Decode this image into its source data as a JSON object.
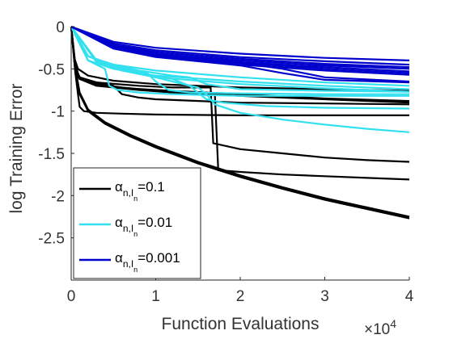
{
  "chart_data": {
    "type": "line",
    "xlabel": "Function Evaluations",
    "ylabel": "log Training Error",
    "x_exponent_label": "×10",
    "x_exponent_power": "4",
    "xlim": [
      0,
      4
    ],
    "ylim": [
      -3.0,
      0
    ],
    "xticks": [
      0,
      1,
      2,
      3,
      4
    ],
    "xtick_labels": [
      "0",
      "1",
      "2",
      "3",
      "4"
    ],
    "yticks": [
      0,
      -0.5,
      -1,
      -1.5,
      -2,
      -2.5
    ],
    "ytick_labels": [
      "0",
      "-0.5",
      "-1",
      "-1.5",
      "-2",
      "-2.5"
    ],
    "grid": false,
    "legend_position": "bottom-left",
    "legend": [
      {
        "prefix": "α",
        "sub": "n,I",
        "subsub": "n",
        "value": "=0.1",
        "color": "#000000"
      },
      {
        "prefix": "α",
        "sub": "n,I",
        "subsub": "n",
        "value": "=0.01",
        "color": "#33e0f0"
      },
      {
        "prefix": "α",
        "sub": "n,I",
        "subsub": "n",
        "value": "=0.001",
        "color": "#0000cc"
      }
    ],
    "series": [
      {
        "group": "0.1",
        "color": "#000000",
        "x": [
          0,
          0.05,
          0.08,
          0.1,
          0.2,
          0.5,
          1,
          2,
          3,
          4
        ],
        "y": [
          0,
          -0.45,
          -0.55,
          -0.6,
          -0.65,
          -0.72,
          -0.75,
          -0.8,
          -0.85,
          -0.88
        ]
      },
      {
        "group": "0.1",
        "color": "#000000",
        "x": [
          0,
          0.05,
          0.1,
          0.3,
          0.6,
          1,
          2,
          3,
          4
        ],
        "y": [
          0,
          -0.5,
          -0.62,
          -0.68,
          -0.72,
          -0.76,
          -0.82,
          -0.86,
          -0.9
        ]
      },
      {
        "group": "0.1",
        "color": "#000000",
        "x": [
          0,
          0.04,
          0.08,
          0.2,
          0.5,
          1,
          2,
          3,
          4
        ],
        "y": [
          0,
          -0.38,
          -0.5,
          -0.58,
          -0.64,
          -0.68,
          -0.72,
          -0.74,
          -0.76
        ]
      },
      {
        "group": "0.1",
        "color": "#000000",
        "x": [
          0,
          0.05,
          0.1,
          0.3,
          0.5,
          0.6,
          0.8,
          1,
          2,
          3,
          4
        ],
        "y": [
          0,
          -0.55,
          -0.62,
          -0.66,
          -0.7,
          -0.8,
          -0.84,
          -0.86,
          -0.9,
          -0.91,
          -0.92
        ]
      },
      {
        "group": "0.1",
        "color": "#000000",
        "x": [
          0,
          0.05,
          0.08,
          0.1,
          0.15,
          0.3,
          0.6,
          1,
          2,
          3,
          4
        ],
        "y": [
          0,
          -0.55,
          -0.8,
          -0.95,
          -1.0,
          -1.02,
          -1.03,
          -1.04,
          -1.05,
          -1.05,
          -1.05
        ]
      },
      {
        "group": "0.1",
        "color": "#000000",
        "x": [
          0,
          0.05,
          0.1,
          0.3,
          0.8,
          1.2,
          1.65,
          1.68,
          2,
          2.5,
          3,
          3.5,
          4
        ],
        "y": [
          0,
          -0.5,
          -0.6,
          -0.66,
          -0.7,
          -0.72,
          -0.72,
          -1.38,
          -1.45,
          -1.5,
          -1.55,
          -1.58,
          -1.6
        ]
      },
      {
        "group": "0.1",
        "color": "#000000",
        "x": [
          0,
          0.05,
          0.1,
          0.3,
          0.8,
          1.2,
          1.7,
          1.74,
          2,
          2.5,
          3,
          3.5,
          4
        ],
        "y": [
          0,
          -0.5,
          -0.62,
          -0.7,
          -0.75,
          -0.78,
          -0.8,
          -1.7,
          -1.72,
          -1.75,
          -1.77,
          -1.79,
          -1.81
        ]
      },
      {
        "group": "0.1",
        "color": "#000000",
        "x": [
          0,
          0.05,
          0.1,
          0.2,
          0.4,
          0.7,
          1,
          1.5,
          2,
          2.5,
          3,
          3.5,
          4
        ],
        "y": [
          0,
          -0.5,
          -0.8,
          -1.0,
          -1.15,
          -1.3,
          -1.43,
          -1.62,
          -1.78,
          -1.92,
          -2.05,
          -2.16,
          -2.27
        ]
      },
      {
        "group": "0.1",
        "color": "#000000",
        "x": [
          0,
          0.05,
          0.1,
          0.2,
          0.4,
          0.7,
          1,
          1.5,
          2,
          2.5,
          3,
          3.5,
          4
        ],
        "y": [
          0,
          -0.5,
          -0.78,
          -0.98,
          -1.13,
          -1.28,
          -1.41,
          -1.6,
          -1.76,
          -1.9,
          -2.03,
          -2.14,
          -2.25
        ]
      },
      {
        "group": "0.01",
        "color": "#33e0f0",
        "x": [
          0,
          0.2,
          0.5,
          1,
          2,
          3,
          4
        ],
        "y": [
          0,
          -0.35,
          -0.45,
          -0.52,
          -0.6,
          -0.66,
          -0.7
        ]
      },
      {
        "group": "0.01",
        "color": "#33e0f0",
        "x": [
          0,
          0.2,
          0.5,
          1,
          2,
          3,
          4
        ],
        "y": [
          0,
          -0.4,
          -0.5,
          -0.58,
          -0.65,
          -0.7,
          -0.74
        ]
      },
      {
        "group": "0.01",
        "color": "#33e0f0",
        "x": [
          0,
          0.3,
          0.6,
          1,
          2,
          3,
          4
        ],
        "y": [
          0,
          -0.42,
          -0.52,
          -0.6,
          -0.68,
          -0.73,
          -0.77
        ]
      },
      {
        "group": "0.01",
        "color": "#33e0f0",
        "x": [
          0,
          0.2,
          0.4,
          0.45,
          0.55,
          0.8,
          1.2,
          2,
          3,
          4
        ],
        "y": [
          0,
          -0.4,
          -0.5,
          -0.7,
          -0.75,
          -0.78,
          -0.8,
          -0.82,
          -0.82,
          -0.82
        ]
      },
      {
        "group": "0.01",
        "color": "#33e0f0",
        "x": [
          0,
          0.2,
          0.5,
          0.9,
          1.0,
          1.15,
          1.4,
          2,
          3,
          4
        ],
        "y": [
          0,
          -0.35,
          -0.48,
          -0.55,
          -0.65,
          -0.75,
          -0.78,
          -0.79,
          -0.8,
          -0.8
        ]
      },
      {
        "group": "0.01",
        "color": "#33e0f0",
        "x": [
          0,
          0.3,
          0.8,
          1.2,
          1.4,
          1.6,
          2,
          3,
          4
        ],
        "y": [
          0,
          -0.4,
          -0.52,
          -0.58,
          -0.6,
          -0.68,
          -0.74,
          -0.76,
          -0.77
        ]
      },
      {
        "group": "0.01",
        "color": "#33e0f0",
        "x": [
          0,
          0.3,
          0.8,
          1.2,
          1.4,
          1.6,
          1.8,
          2.3,
          3,
          4
        ],
        "y": [
          0,
          -0.4,
          -0.55,
          -0.62,
          -0.7,
          -0.86,
          -0.9,
          -0.94,
          -0.96,
          -0.97
        ]
      },
      {
        "group": "0.01",
        "color": "#33e0f0",
        "x": [
          0,
          0.3,
          0.8,
          1.2,
          1.5,
          1.6,
          1.7,
          2.0,
          2.5,
          3,
          3.5,
          4
        ],
        "y": [
          0,
          -0.4,
          -0.55,
          -0.65,
          -0.72,
          -0.8,
          -0.92,
          -1.02,
          -1.1,
          -1.16,
          -1.21,
          -1.25
        ]
      },
      {
        "group": "0.001",
        "color": "#0000cc",
        "x": [
          0,
          0.5,
          1,
          2,
          3,
          4
        ],
        "y": [
          0,
          -0.18,
          -0.25,
          -0.32,
          -0.37,
          -0.4
        ]
      },
      {
        "group": "0.001",
        "color": "#0000cc",
        "x": [
          0,
          0.5,
          1,
          2,
          3,
          4
        ],
        "y": [
          0,
          -0.2,
          -0.28,
          -0.36,
          -0.41,
          -0.45
        ]
      },
      {
        "group": "0.001",
        "color": "#0000cc",
        "x": [
          0,
          0.5,
          1,
          2,
          3,
          4
        ],
        "y": [
          0,
          -0.22,
          -0.3,
          -0.38,
          -0.44,
          -0.48
        ]
      },
      {
        "group": "0.001",
        "color": "#0000cc",
        "x": [
          0,
          0.5,
          1,
          2,
          3,
          4
        ],
        "y": [
          0,
          -0.23,
          -0.32,
          -0.4,
          -0.46,
          -0.5
        ]
      },
      {
        "group": "0.001",
        "color": "#0000cc",
        "x": [
          0,
          0.5,
          1,
          2,
          3,
          4
        ],
        "y": [
          0,
          -0.24,
          -0.33,
          -0.42,
          -0.48,
          -0.53
        ]
      },
      {
        "group": "0.001",
        "color": "#0000cc",
        "x": [
          0,
          0.5,
          1,
          2,
          3,
          4
        ],
        "y": [
          0,
          -0.25,
          -0.34,
          -0.43,
          -0.5,
          -0.55
        ]
      },
      {
        "group": "0.001",
        "color": "#0000cc",
        "x": [
          0,
          0.5,
          1,
          2,
          3,
          4
        ],
        "y": [
          0,
          -0.26,
          -0.35,
          -0.45,
          -0.52,
          -0.57
        ]
      },
      {
        "group": "0.001",
        "color": "#0000cc",
        "x": [
          0,
          0.5,
          1,
          2,
          2.5,
          3,
          4
        ],
        "y": [
          0,
          -0.24,
          -0.33,
          -0.43,
          -0.5,
          -0.6,
          -0.65
        ]
      },
      {
        "group": "0.001",
        "color": "#0000cc",
        "x": [
          0,
          0.5,
          1,
          2,
          2.5,
          3,
          4
        ],
        "y": [
          0,
          -0.26,
          -0.36,
          -0.46,
          -0.55,
          -0.63,
          -0.66
        ]
      }
    ]
  }
}
